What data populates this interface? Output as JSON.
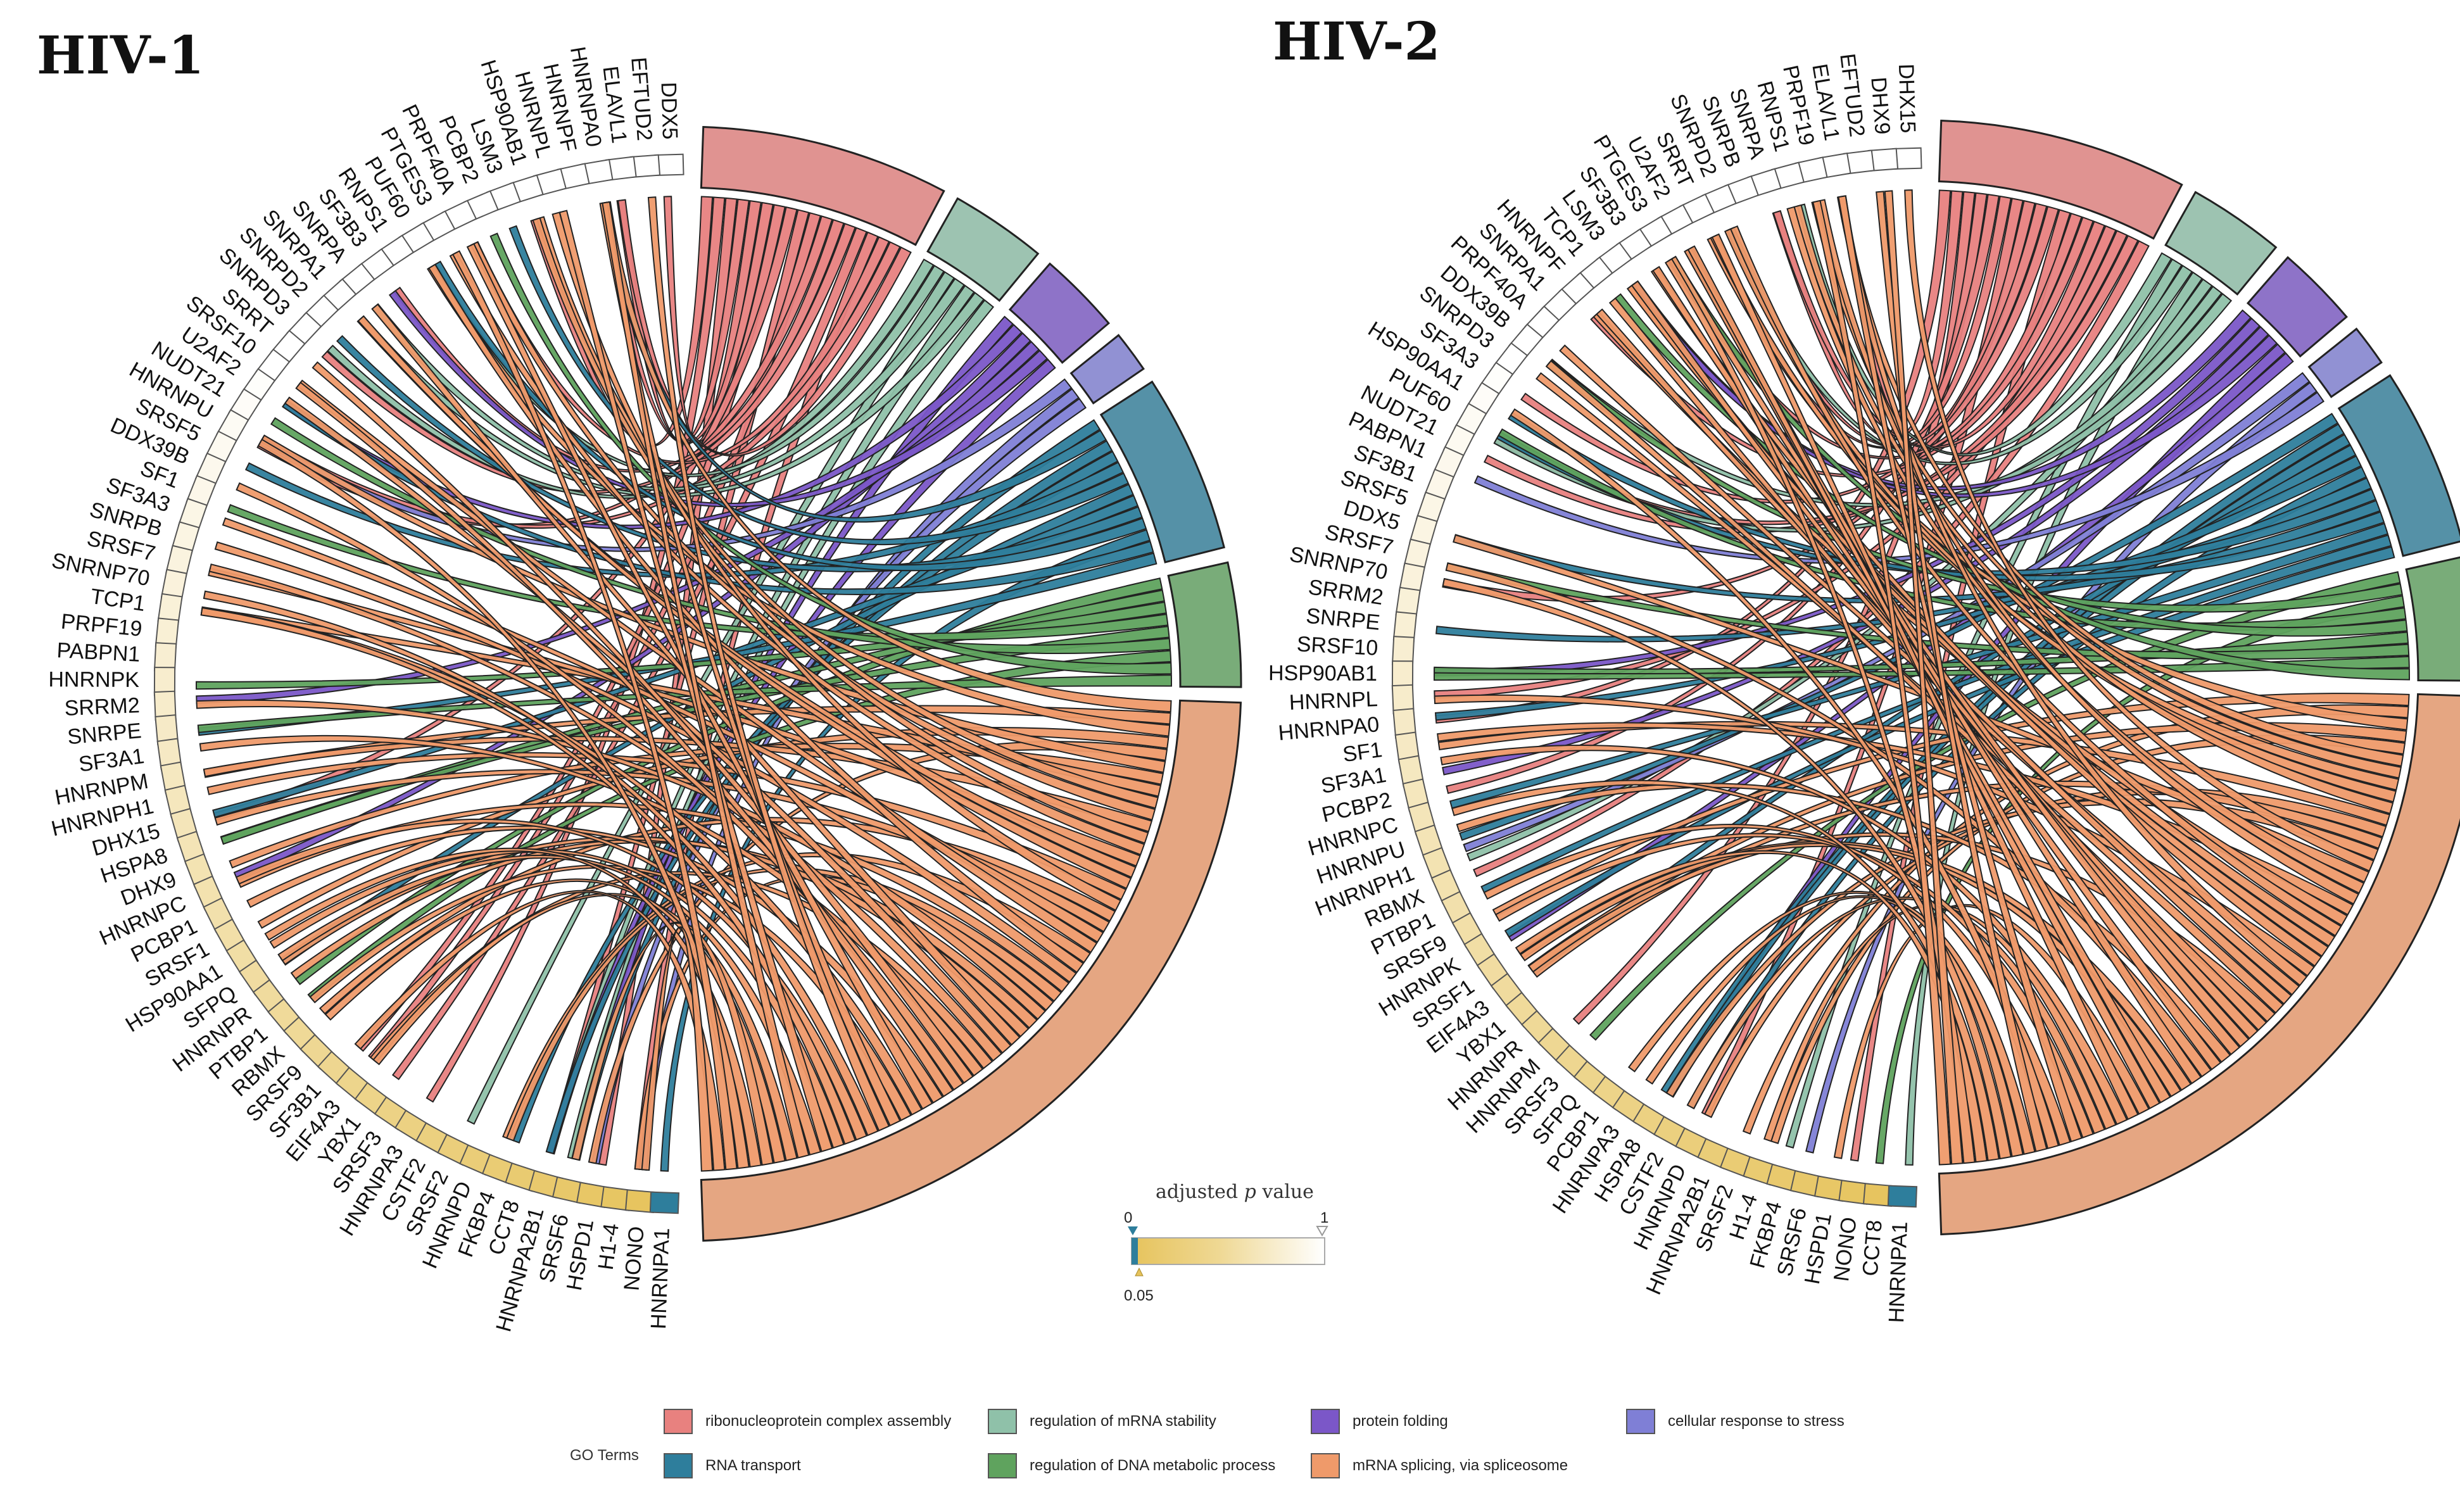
{
  "panels": [
    {
      "title": "HIV-1",
      "genes": [
        "DDX5",
        "EFTUD2",
        "ELAVL1",
        "HNRNPA0",
        "HNRNPF",
        "HNRNPL",
        "HSP90AB1",
        "LSM3",
        "PCBP2",
        "PRPF40A",
        "PTGES3",
        "PUF60",
        "RNPS1",
        "SF3B3",
        "SNRPA",
        "SNRPA1",
        "SNRPD2",
        "SNRPD3",
        "SRRT",
        "SRSF10",
        "U2AF2",
        "NUDT21",
        "HNRNPU",
        "SRSF5",
        "DDX39B",
        "SF1",
        "SF3A3",
        "SNRPB",
        "SRSF7",
        "SNRNP70",
        "TCP1",
        "PRPF19",
        "PABPN1",
        "HNRNPK",
        "SRRM2",
        "SNRPE",
        "SF3A1",
        "HNRNPM",
        "HNRNPH1",
        "DHX15",
        "HSPA8",
        "DHX9",
        "HNRNPC",
        "PCBP1",
        "SRSF1",
        "HSP90AA1",
        "SFPQ",
        "HNRNPR",
        "PTBP1",
        "RBMX",
        "SRSF9",
        "SF3B1",
        "EIF4A3",
        "YBX1",
        "SRSF3",
        "HNRNPA3",
        "CSTF2",
        "SRSF2",
        "HNRNPD",
        "FKBP4",
        "CCT8",
        "HNRNPA2B1",
        "SRSF6",
        "HSPD1",
        "H1-4",
        "NONO",
        "HNRNPA1"
      ]
    },
    {
      "title": "HIV-2",
      "genes": [
        "DHX15",
        "DHX9",
        "EFTUD2",
        "ELAVL1",
        "PRPF19",
        "RNPS1",
        "SNRPA",
        "SNRPB",
        "SNRPD2",
        "SRRT",
        "U2AF2",
        "PTGES3",
        "SF3B3",
        "LSM3",
        "TCP1",
        "HNRNPF",
        "SNRPA1",
        "PRPF40A",
        "DDX39B",
        "SNRPD3",
        "SF3A3",
        "HSP90AA1",
        "PUF60",
        "NUDT21",
        "PABPN1",
        "SF3B1",
        "SRSF5",
        "DDX5",
        "SRSF7",
        "SNRNP70",
        "SRRM2",
        "SNRPE",
        "SRSF10",
        "HSP90AB1",
        "HNRNPL",
        "HNRNPA0",
        "SF1",
        "SF3A1",
        "PCBP2",
        "HNRNPC",
        "HNRNPU",
        "HNRNPH1",
        "RBMX",
        "PTBP1",
        "SRSF9",
        "HNRNPK",
        "SRSF1",
        "EIF4A3",
        "YBX1",
        "HNRNPR",
        "HNRNPM",
        "SRSF3",
        "SFPQ",
        "PCBP1",
        "HNRNPA3",
        "HSPA8",
        "CSTF2",
        "HNRNPD",
        "HNRNPA2B1",
        "SRSF2",
        "H1-4",
        "FKBP4",
        "SRSF6",
        "HSPD1",
        "NONO",
        "CCT8",
        "HNRNPA1"
      ]
    }
  ],
  "chart_data": {
    "type": "chord",
    "terms": [
      {
        "name": "ribonucleoprotein complex assembly",
        "color": "#E8817F",
        "size": 18
      },
      {
        "name": "regulation of mRNA stability",
        "color": "#8FC1A9",
        "size": 7
      },
      {
        "name": "protein folding",
        "color": "#7B57C8",
        "size": 6
      },
      {
        "name": "cellular response to stress",
        "color": "#7F7FD6",
        "size": 3
      },
      {
        "name": "RNA transport",
        "color": "#2E7E9C",
        "size": 13
      },
      {
        "name": "regulation of DNA metabolic process",
        "color": "#5FA35E",
        "size": 9
      },
      {
        "name": "mRNA splicing, via spliceosome",
        "color": "#EF9A6A",
        "size": 60
      }
    ],
    "pvalue_scale": {
      "title_prefix": "adjusted ",
      "title_p": "p",
      "title_suffix": " value",
      "min_label": "0",
      "max_label": "1",
      "threshold_label": "0.05",
      "min": 0,
      "max": 1,
      "threshold": 0.05,
      "colors": [
        "#2E7E9C",
        "#E6C35C",
        "#FFFFFF"
      ]
    },
    "legend": {
      "title": "GO Terms",
      "placement": "bottom-center"
    }
  },
  "colors": {
    "outline": "#222222",
    "gap": "#ffffff"
  }
}
